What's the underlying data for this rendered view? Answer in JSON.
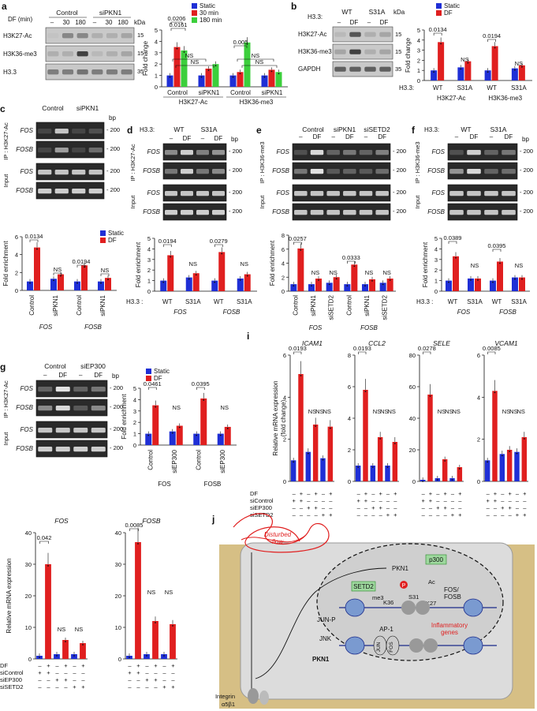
{
  "panels": {
    "a": {
      "letter": "a",
      "df_label": "DF (min)",
      "groups": [
        "Control",
        "siPKN1"
      ],
      "lanes": [
        "–",
        "30",
        "180",
        "–",
        "30",
        "180"
      ],
      "kda": "kDa",
      "rows": [
        {
          "label": "H3K27-Ac",
          "mw": "15"
        },
        {
          "label": "H3K36-me3",
          "mw": "15"
        },
        {
          "label": "H3.3",
          "mw": "35"
        }
      ],
      "legend": [
        "Static",
        "30 min",
        "180 min"
      ],
      "ylabel": "Fold change",
      "yticks": [
        "0",
        "1",
        "2",
        "3",
        "4",
        "5"
      ],
      "pvals": [
        "0.0206",
        "0.0161",
        "0.005",
        "NS",
        "NS",
        "NS",
        "NS",
        "NS"
      ],
      "xgroups": [
        "Control",
        "siPKN1",
        "Control",
        "siPKN1"
      ],
      "xmarks": [
        "H3K27-Ac",
        "H3K36-me3"
      ]
    },
    "b": {
      "letter": "b",
      "h33": "H3.3:",
      "groups": [
        "WT",
        "S31A"
      ],
      "lanes": [
        "–",
        "DF",
        "–",
        "DF"
      ],
      "kda": "kDa",
      "rows": [
        {
          "label": "H3K27-Ac",
          "mw": "15"
        },
        {
          "label": "H3K36-me3",
          "mw": "15"
        },
        {
          "label": "GAPDH",
          "mw": "35"
        }
      ],
      "legend": [
        "Static",
        "DF"
      ],
      "ylabel": "Fold change",
      "yticks": [
        "0",
        "1",
        "2",
        "3",
        "4",
        "5"
      ],
      "pvals": [
        "0.0134",
        "0.0194",
        "NS",
        "NS"
      ],
      "xh": "H3.3:",
      "xgroups": [
        "WT",
        "S31A",
        "WT",
        "S31A"
      ],
      "xmarks": [
        "H3K27-Ac",
        "H3K36-me3"
      ]
    },
    "c": {
      "letter": "c",
      "groups": [
        "Control",
        "siPKN1"
      ],
      "lanes": [
        "–",
        "DF",
        "–",
        "DF"
      ],
      "ip": "IP : H3K27-Ac",
      "input": "Input",
      "rows": [
        "FOS",
        "FOSB",
        "FOS",
        "FOSB"
      ],
      "bp": "bp",
      "mw": "200",
      "legend": [
        "Static",
        "DF"
      ],
      "ylabel": "Fold enrichment",
      "yticks": [
        "0",
        "2",
        "4",
        "6"
      ],
      "pvals": [
        "0.0134",
        "0.0194",
        "NS",
        "NS"
      ],
      "xgroups": [
        "Control",
        "siPKN1",
        "Control",
        "siPKN1"
      ],
      "xmarks": [
        "FOS",
        "FOSB"
      ]
    },
    "d": {
      "letter": "d",
      "h33": "H3.3:",
      "groups": [
        "WT",
        "S31A"
      ],
      "lanes": [
        "–",
        "DF",
        "–",
        "DF"
      ],
      "ip": "IP : H3K27-Ac",
      "input": "Input",
      "rows": [
        "FOS",
        "FOSB",
        "FOS",
        "FOSB"
      ],
      "bp": "bp",
      "mw": "200",
      "ylabel": "Fold enrichment",
      "yticks": [
        "0",
        "1",
        "2",
        "3",
        "4",
        "5"
      ],
      "pvals": [
        "0.0194",
        "0.0279",
        "NS",
        "NS"
      ],
      "xh": "H3.3 :",
      "xgroups": [
        "WT",
        "S31A",
        "WT",
        "S31A"
      ],
      "xmarks": [
        "FOS",
        "FOSB"
      ]
    },
    "e": {
      "letter": "e",
      "groups": [
        "Control",
        "siPKN1",
        "siSETD2"
      ],
      "lanes": [
        "–",
        "DF",
        "–",
        "DF",
        "–",
        "DF"
      ],
      "ip": "IP : H3K36-me3",
      "input": "Input",
      "rows": [
        "FOS",
        "FOSB",
        "FOS",
        "FOSB"
      ],
      "mw": "200",
      "ylabel": "Fold enrichment",
      "yticks": [
        "0",
        "2",
        "4",
        "6",
        "8"
      ],
      "pvals": [
        "0.0257",
        "0.0333",
        "NS",
        "NS",
        "NS",
        "NS"
      ],
      "xgroups": [
        "Control",
        "siPKN1",
        "siSETD2",
        "Control",
        "siPKN1",
        "siSETD2"
      ],
      "xmarks": [
        "FOS",
        "FOSB"
      ]
    },
    "f": {
      "letter": "f",
      "h33": "H3.3:",
      "groups": [
        "WT",
        "S31A"
      ],
      "lanes": [
        "–",
        "DF",
        "–",
        "DF"
      ],
      "ip": "IP : H3K36-me3",
      "input": "Input",
      "rows": [
        "FOS",
        "FOSB",
        "FOS",
        "FOSB"
      ],
      "bp": "bp",
      "mw": "200",
      "ylabel": "Fold enrichment",
      "yticks": [
        "0",
        "1",
        "2",
        "3",
        "4",
        "5"
      ],
      "pvals": [
        "0.0389",
        "0.0395",
        "NS",
        "NS"
      ],
      "xh": "H3.3 :",
      "xgroups": [
        "WT",
        "S31A",
        "WT",
        "S31A"
      ],
      "xmarks": [
        "FOS",
        "FOSB"
      ]
    },
    "g": {
      "letter": "g",
      "groups": [
        "Control",
        "siEP300"
      ],
      "lanes": [
        "–",
        "DF",
        "–",
        "DF"
      ],
      "ip": "IP : H3K27-Ac",
      "input": "Input",
      "rows": [
        "FOS",
        "FOSB",
        "FOS",
        "FOSB"
      ],
      "bp": "bp",
      "mw": "200",
      "legend": [
        "Static",
        "DF"
      ],
      "ylabel": "Fold enrichment",
      "yticks": [
        "0",
        "1",
        "2",
        "3",
        "4",
        "5"
      ],
      "pvals": [
        "0.0461",
        "0.0395",
        "NS",
        "NS"
      ],
      "xgroups": [
        "Control",
        "siEP300",
        "Control",
        "siEP300"
      ],
      "xmarks": [
        "FOS",
        "FOSB"
      ]
    },
    "h": {
      "letter": "h",
      "ylabel": "Relative mRNA expression",
      "genes": [
        "FOS",
        "FOSB"
      ],
      "pvals": [
        "0.042",
        "0.0085",
        "NS",
        "NS",
        "NS",
        "NS"
      ],
      "rowlabels": [
        "DF",
        "siControl",
        "siEP300",
        "siSETD2"
      ],
      "signs": [
        [
          "–",
          "+",
          "–",
          "+",
          "–",
          "+"
        ],
        [
          "+",
          "+",
          "–",
          "–",
          "–",
          "–"
        ],
        [
          "–",
          "–",
          "+",
          "+",
          "–",
          "–"
        ],
        [
          "–",
          "–",
          "–",
          "–",
          "+",
          "+"
        ]
      ]
    },
    "i": {
      "letter": "i",
      "ylabel": "Relative mRNA expression\n(fold change)",
      "genes": [
        "ICAM1",
        "CCL2",
        "SELE",
        "VCAM1"
      ],
      "pvals": [
        "0.0193",
        "0.0193",
        "0.0278",
        "0.0085",
        "NS"
      ],
      "rowlabels": [
        "DF",
        "siControl",
        "siEP300",
        "siSETD2"
      ],
      "signs": [
        [
          "–",
          "+",
          "–",
          "+",
          "–",
          "+"
        ],
        [
          "+",
          "+",
          "–",
          "–",
          "–",
          "–"
        ],
        [
          "–",
          "–",
          "+",
          "+",
          "–",
          "–"
        ],
        [
          "–",
          "–",
          "–",
          "–",
          "+",
          "+"
        ]
      ]
    },
    "j": {
      "letter": "j",
      "labels": {
        "flow": "Disturbed\nflow",
        "pkn1_top": "PKN1",
        "p300": "p300",
        "setd2": "SETD2",
        "me3": "me3",
        "ac": "Ac",
        "k36": "K36",
        "s31": "S31",
        "k27": "K27",
        "fosfosb": "FOS/\nFOSB",
        "junp": "JUN-P",
        "jnk": "JNK",
        "pkn1": "PKN1",
        "ap1": "AP-1",
        "jun": "JUN",
        "fos": "FOS",
        "infl": "Inflammatory\ngenes",
        "integrin": "Integrin\nα5β1",
        "p": "P"
      }
    }
  },
  "chart_data": [
    {
      "type": "bar",
      "panel": "a",
      "categories": [
        "Control H3K27-Ac",
        "siPKN1 H3K27-Ac",
        "Control H3K36-me3",
        "siPKN1 H3K36-me3"
      ],
      "series": [
        {
          "name": "Static",
          "values": [
            1.0,
            1.0,
            1.0,
            1.0
          ]
        },
        {
          "name": "30 min",
          "values": [
            3.5,
            1.6,
            1.3,
            1.5
          ]
        },
        {
          "name": "180 min",
          "values": [
            3.2,
            2.0,
            3.9,
            1.3
          ]
        }
      ],
      "ylim": [
        0,
        5
      ],
      "ylabel": "Fold change"
    },
    {
      "type": "bar",
      "panel": "b",
      "categories": [
        "WT H3K27-Ac",
        "S31A H3K27-Ac",
        "WT H3K36-me3",
        "S31A H3K36-me3"
      ],
      "series": [
        {
          "name": "Static",
          "values": [
            1.0,
            1.3,
            1.0,
            1.2
          ]
        },
        {
          "name": "DF",
          "values": [
            3.8,
            1.9,
            3.4,
            1.5
          ]
        }
      ],
      "ylim": [
        0,
        5
      ],
      "ylabel": "Fold change"
    },
    {
      "type": "bar",
      "panel": "c",
      "categories": [
        "Control FOS",
        "siPKN1 FOS",
        "Control FOSB",
        "siPKN1 FOSB"
      ],
      "series": [
        {
          "name": "Static",
          "values": [
            1.0,
            1.3,
            1.0,
            1.0
          ]
        },
        {
          "name": "DF",
          "values": [
            4.8,
            1.8,
            2.8,
            1.4
          ]
        }
      ],
      "ylim": [
        0,
        6
      ],
      "ylabel": "Fold enrichment"
    },
    {
      "type": "bar",
      "panel": "d",
      "categories": [
        "WT FOS",
        "S31A FOS",
        "WT FOSB",
        "S31A FOSB"
      ],
      "series": [
        {
          "name": "Static",
          "values": [
            1.0,
            1.3,
            1.0,
            1.2
          ]
        },
        {
          "name": "DF",
          "values": [
            3.4,
            1.7,
            3.7,
            1.6
          ]
        }
      ],
      "ylim": [
        0,
        5
      ],
      "ylabel": "Fold enrichment"
    },
    {
      "type": "bar",
      "panel": "e",
      "categories": [
        "Control FOS",
        "siPKN1 FOS",
        "siSETD2 FOS",
        "Control FOSB",
        "siPKN1 FOSB",
        "siSETD2 FOSB"
      ],
      "series": [
        {
          "name": "Static",
          "values": [
            1.0,
            1.0,
            1.2,
            1.0,
            1.0,
            1.2
          ]
        },
        {
          "name": "DF",
          "values": [
            6.1,
            1.8,
            2.0,
            3.8,
            1.7,
            1.8
          ]
        }
      ],
      "ylim": [
        0,
        8
      ],
      "ylabel": "Fold enrichment"
    },
    {
      "type": "bar",
      "panel": "f",
      "categories": [
        "WT FOS",
        "S31A FOS",
        "WT FOSB",
        "S31A FOSB"
      ],
      "series": [
        {
          "name": "Static",
          "values": [
            1.0,
            1.2,
            1.0,
            1.3
          ]
        },
        {
          "name": "DF",
          "values": [
            3.3,
            1.2,
            2.8,
            1.3
          ]
        }
      ],
      "ylim": [
        0,
        5
      ],
      "ylabel": "Fold enrichment"
    },
    {
      "type": "bar",
      "panel": "g",
      "categories": [
        "Control FOS",
        "siEP300 FOS",
        "Control FOSB",
        "siEP300 FOSB"
      ],
      "series": [
        {
          "name": "Static",
          "values": [
            1.0,
            1.2,
            1.0,
            1.0
          ]
        },
        {
          "name": "DF",
          "values": [
            3.5,
            1.7,
            4.1,
            1.6
          ]
        }
      ],
      "ylim": [
        0,
        5
      ],
      "ylabel": "Fold enrichment"
    },
    {
      "type": "bar",
      "panel": "h",
      "subcharts": [
        {
          "gene": "FOS",
          "values": [
            1,
            30,
            1.5,
            6,
            1.5,
            5
          ],
          "ylim": [
            0,
            40
          ],
          "yticks": [
            0,
            10,
            20,
            30,
            40
          ]
        },
        {
          "gene": "FOSB",
          "values": [
            1,
            37,
            1.5,
            12,
            1.5,
            11
          ],
          "ylim": [
            0,
            40
          ],
          "yticks": [
            0,
            10,
            20,
            30,
            40
          ]
        }
      ]
    },
    {
      "type": "bar",
      "panel": "i",
      "subcharts": [
        {
          "gene": "ICAM1",
          "values": [
            1,
            5.1,
            1.4,
            2.7,
            1.1,
            2.6
          ],
          "ylim": [
            0,
            6
          ],
          "yticks": [
            0,
            2,
            4,
            6
          ]
        },
        {
          "gene": "CCL2",
          "values": [
            1,
            5.8,
            1,
            2.8,
            1,
            2.5
          ],
          "ylim": [
            0,
            8
          ],
          "yticks": [
            0,
            2,
            4,
            6,
            8
          ]
        },
        {
          "gene": "SELE",
          "values": [
            1,
            55,
            2,
            14,
            2,
            9
          ],
          "ylim": [
            0,
            80
          ],
          "yticks": [
            0,
            20,
            40,
            60,
            80
          ]
        },
        {
          "gene": "VCAM1",
          "values": [
            1,
            4.3,
            1.3,
            1.5,
            1.4,
            2.1
          ],
          "ylim": [
            0,
            6
          ],
          "yticks": [
            0,
            2,
            4,
            6
          ]
        }
      ]
    }
  ]
}
